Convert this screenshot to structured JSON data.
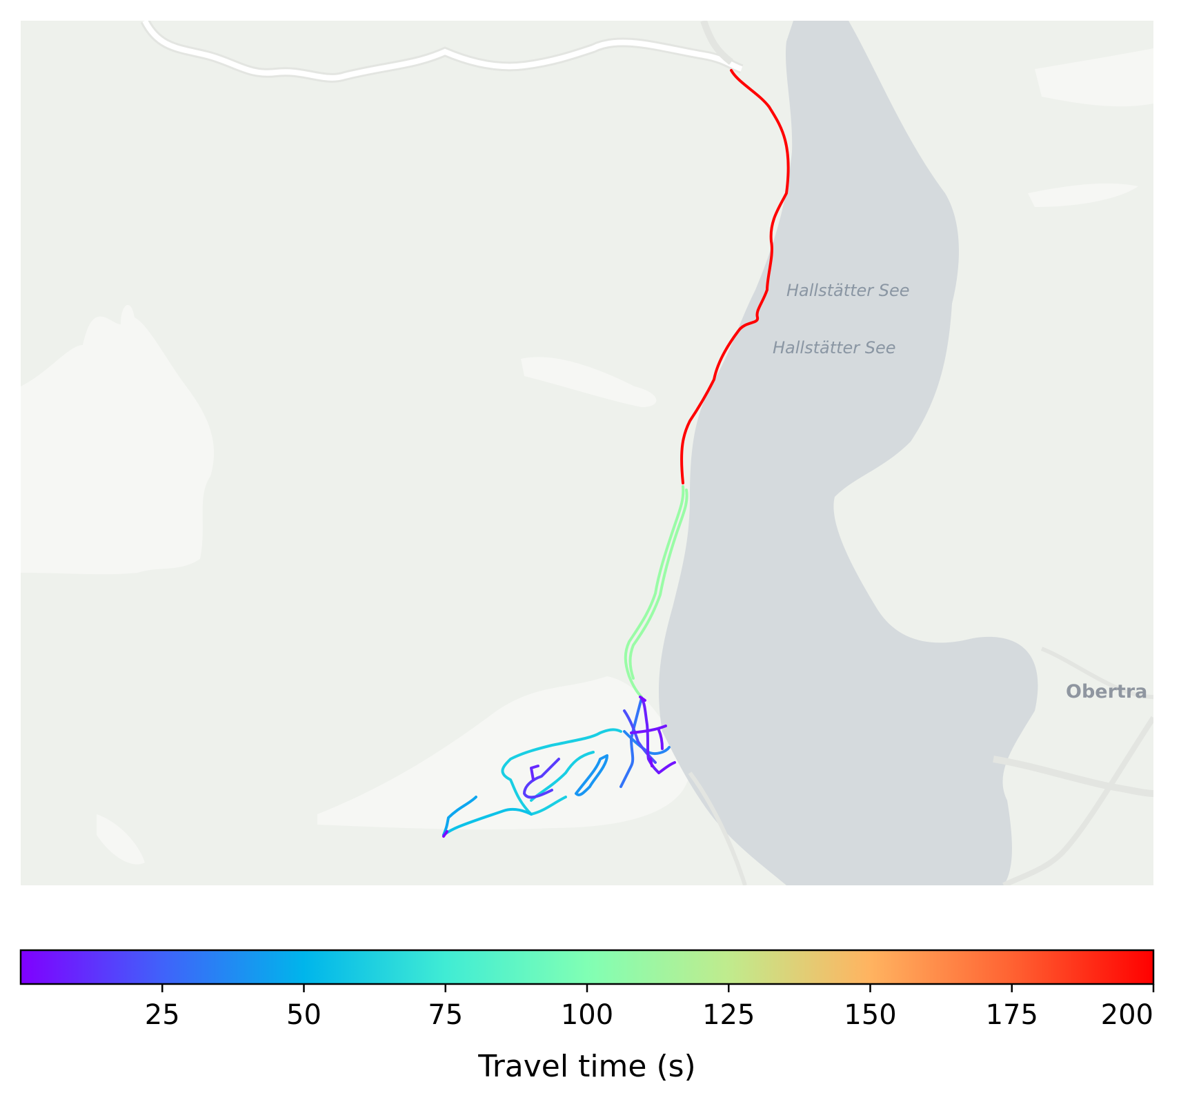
{
  "map": {
    "labels": {
      "lake_label_1": "Hallstätter See",
      "lake_label_2": "Hallstätter See",
      "town_label": "Obertra"
    },
    "colors": {
      "land": "#eef1ec",
      "water": "#d5dadd",
      "road": "#ffffff"
    }
  },
  "chart_data": {
    "type": "line",
    "colormap": "rainbow",
    "color_range": [
      0,
      200
    ],
    "series": [
      {
        "travel_time": 200
      },
      {
        "travel_time": 110
      },
      {
        "travel_time": 60
      },
      {
        "travel_time": 55
      },
      {
        "travel_time": 45
      },
      {
        "travel_time": 40
      },
      {
        "travel_time": 35
      },
      {
        "travel_time": 30
      },
      {
        "travel_time": 20
      },
      {
        "travel_time": 15
      },
      {
        "travel_time": 10
      },
      {
        "travel_time": 8
      },
      {
        "travel_time": 5
      },
      {
        "travel_time": 2
      }
    ]
  },
  "colorbar": {
    "label": "Travel time (s)",
    "ticks": [
      {
        "value": 25,
        "label": "25"
      },
      {
        "value": 50,
        "label": "50"
      },
      {
        "value": 75,
        "label": "75"
      },
      {
        "value": 100,
        "label": "100"
      },
      {
        "value": 125,
        "label": "125"
      },
      {
        "value": 150,
        "label": "150"
      },
      {
        "value": 175,
        "label": "175"
      },
      {
        "value": 200,
        "label": "200"
      }
    ]
  }
}
